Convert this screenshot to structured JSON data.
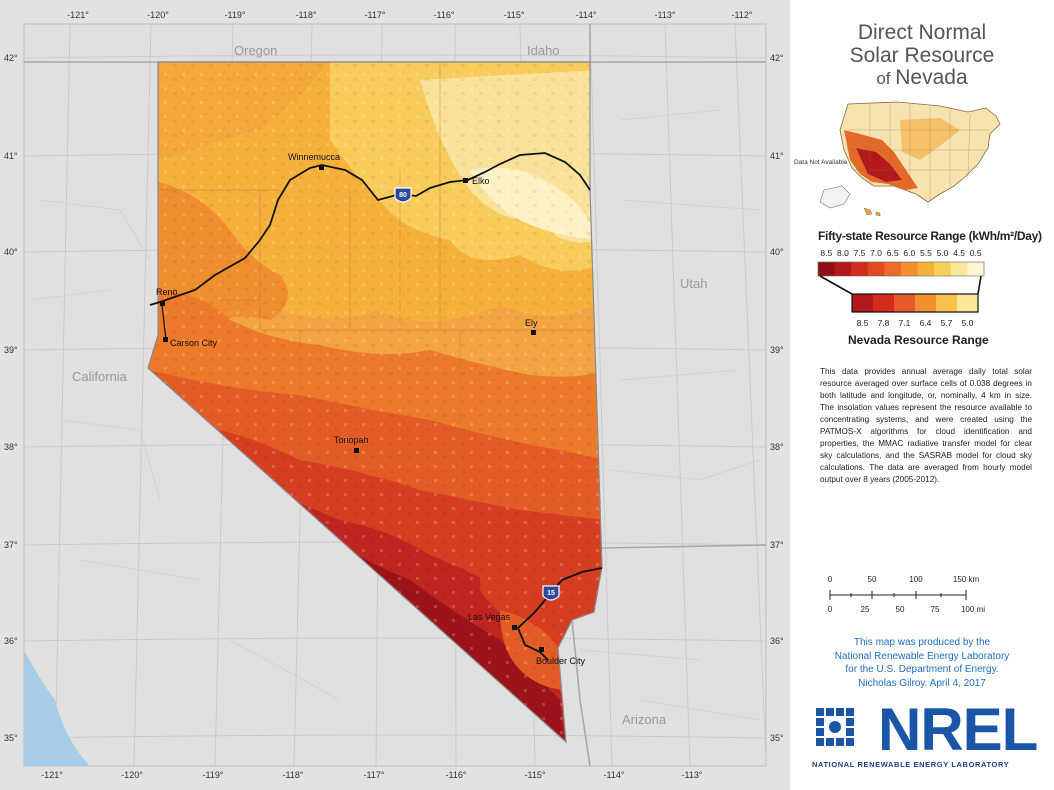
{
  "map": {
    "top_lon_labels": [
      "-121°",
      "-120°",
      "-119°",
      "-118°",
      "-117°",
      "-116°",
      "-115°",
      "-114°",
      "-113°",
      "-112°"
    ],
    "bottom_lon_labels": [
      "-121°",
      "-120°",
      "-119°",
      "-118°",
      "-117°",
      "-116°",
      "-115°",
      "-114°",
      "-113°"
    ],
    "left_lat_labels": [
      "42°",
      "41°",
      "40°",
      "39°",
      "38°",
      "37°",
      "36°",
      "35°"
    ],
    "right_lat_labels": [
      "42°",
      "41°",
      "40°",
      "39°",
      "38°",
      "37°",
      "36°",
      "35°"
    ],
    "states": {
      "oregon": "Oregon",
      "idaho": "Idaho",
      "utah": "Utah",
      "california": "California",
      "arizona": "Arizona"
    },
    "cities": {
      "winnemucca": "Winnemucca",
      "elko": "Elko",
      "reno": "Reno",
      "carson_city": "Carson City",
      "ely": "Ely",
      "tonopah": "Tonopah",
      "las_vegas": "Las Vegas",
      "boulder_city": "Boulder City"
    },
    "interstates": {
      "i80": "80",
      "i15": "15"
    },
    "colors": {
      "background": "#e2e2e2",
      "grid": "#c8c8c8",
      "water": "#a8cde8",
      "route": "#111111"
    }
  },
  "panel": {
    "title_line1": "Direct Normal",
    "title_line2": "Solar Resource",
    "title_line3_prefix": "of",
    "title_line3_main": "Nevada",
    "inset_label": "Data Not Available",
    "legend_title": "Fifty-state Resource Range (kWh/m²/Day)",
    "fifty_state_values": [
      "8.5",
      "8.0",
      "7.5",
      "7.0",
      "6.5",
      "6.0",
      "5.5",
      "5.0",
      "4.5",
      "0.5"
    ],
    "fifty_state_colors": [
      "#8e1017",
      "#b3181c",
      "#d32a1f",
      "#e24a22",
      "#ec6c27",
      "#f28f30",
      "#f6b13d",
      "#f9d05a",
      "#fbe79a",
      "#fdf6d6"
    ],
    "nevada_values": [
      "8.5",
      "7.8",
      "7.1",
      "6.4",
      "5.7",
      "5.0"
    ],
    "nevada_colors": [
      "#b3181c",
      "#d32a1f",
      "#e8592a",
      "#f28f30",
      "#f8c24c",
      "#fbe79a"
    ],
    "nevada_title": "Nevada Resource Range",
    "description": "This data provides annual average daily total solar resource averaged over surface cells of 0.038 degrees in both latitude and longitude, or, nominally, 4 km in size. The insolation values represent the resource available to concentrating systems, and were created using the PATMOS-X algorithms for cloud identification and properties, the MMAC radiative transfer model for clear sky calculations, and the SASRAB model for cloud sky calculations. The data are averaged from hourly model output over 8 years (2005-2012).",
    "scale_km": [
      "0",
      "50",
      "100",
      "150 km"
    ],
    "scale_mi": [
      "0",
      "25",
      "50",
      "75",
      "100 mi"
    ],
    "credit_lines": [
      "This map was produced by the",
      "National Renewable Energy Laboratory",
      "for the U.S. Department of Energy.",
      "Nicholas Gilroy.  April 4, 2017"
    ],
    "nrel_word": "NREL",
    "nrel_sub": "NATIONAL RENEWABLE ENERGY LABORATORY",
    "nrel_color": "#1b55a8"
  }
}
